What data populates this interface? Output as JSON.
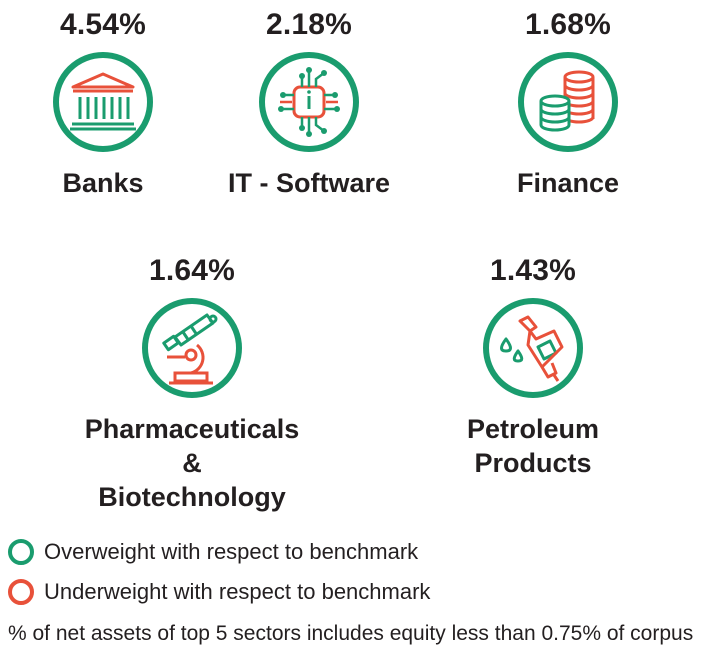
{
  "sectors": [
    {
      "percentage": "4.54%",
      "name": "Banks",
      "icon": "bank-building-icon",
      "weight": "overweight"
    },
    {
      "percentage": "2.18%",
      "name": "IT - Software",
      "icon": "chip-icon",
      "weight": "overweight"
    },
    {
      "percentage": "1.68%",
      "name": "Finance",
      "icon": "coin-stacks-icon",
      "weight": "overweight"
    },
    {
      "percentage": "1.64%",
      "name": "Pharmaceuticals &",
      "name2": "Biotechnology",
      "icon": "microscope-icon",
      "weight": "overweight"
    },
    {
      "percentage": "1.43%",
      "name": "Petroleum Products",
      "icon": "fuel-nozzle-icon",
      "weight": "overweight"
    }
  ],
  "legend": {
    "overweight": "Overweight with respect to benchmark",
    "underweight": "Underweight with respect to benchmark"
  },
  "note": "% of net assets of top 5 sectors includes equity less than 0.75% of corpus",
  "colors": {
    "green": "#1a9c6e",
    "red": "#e8513a",
    "text": "#231f20"
  }
}
